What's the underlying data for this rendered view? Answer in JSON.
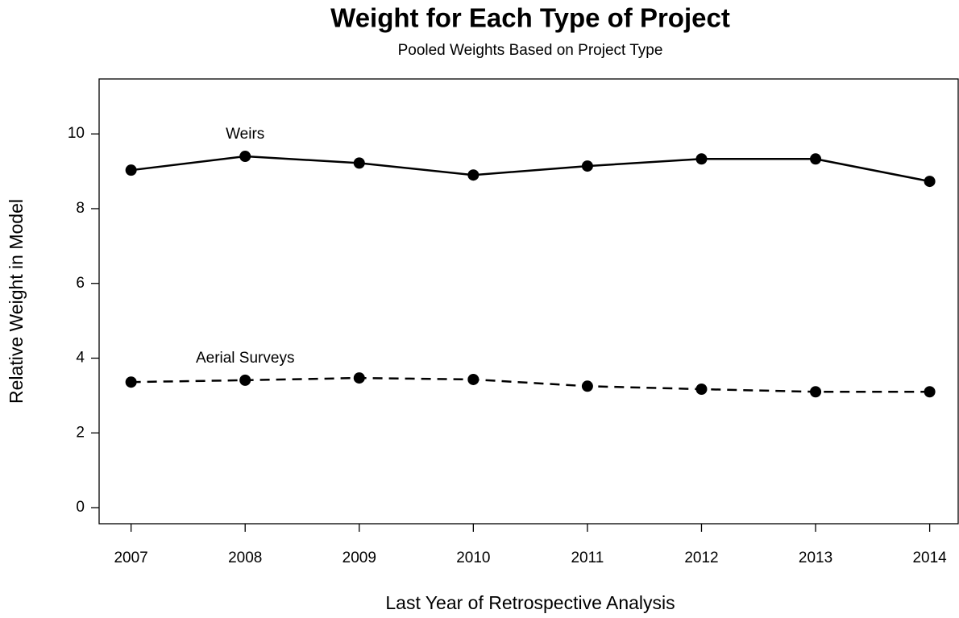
{
  "chart_data": {
    "type": "line",
    "title": "Weight for Each Type of Project",
    "subtitle": "Pooled Weights Based on Project Type",
    "x_label": "Last Year of Retrospective Analysis",
    "y_label": "Relative Weight in Model",
    "x": [
      2007,
      2008,
      2009,
      2010,
      2011,
      2012,
      2013,
      2014
    ],
    "series": [
      {
        "name": "Weirs",
        "color": "#000000",
        "linestyle": "solid",
        "values": [
          9.03,
          9.4,
          9.22,
          8.9,
          9.14,
          9.33,
          9.33,
          8.73
        ]
      },
      {
        "name": "Aerial Surveys",
        "color": "#000000",
        "linestyle": "dashed",
        "values": [
          3.36,
          3.41,
          3.47,
          3.43,
          3.25,
          3.17,
          3.1,
          3.1
        ]
      }
    ],
    "xlim": [
      2006.72,
      2014.25
    ],
    "xticks": [
      2007,
      2008,
      2009,
      2010,
      2011,
      2012,
      2013,
      2014
    ],
    "ylim": [
      -0.43,
      11.47
    ],
    "yticks": [
      0,
      2,
      4,
      6,
      8,
      10
    ],
    "grid": false
  }
}
